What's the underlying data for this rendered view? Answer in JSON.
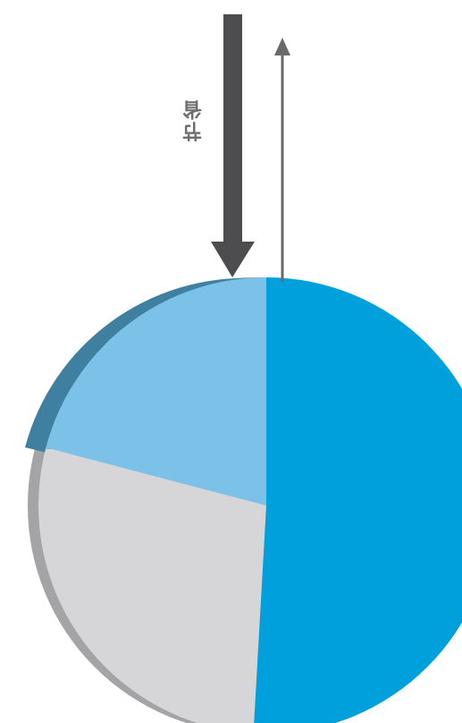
{
  "diagram": {
    "arrow_label": "节省",
    "colors": {
      "blue_main": "#00a0dc",
      "blue_light": "#7cc2e8",
      "blue_dark_rim": "#3f7f9f",
      "gray_slice": "#d6d6d8",
      "gray_rim": "#a4a4a6",
      "arrow_thick": "#4d4d4f",
      "arrow_thin": "#6a6a6c"
    }
  }
}
